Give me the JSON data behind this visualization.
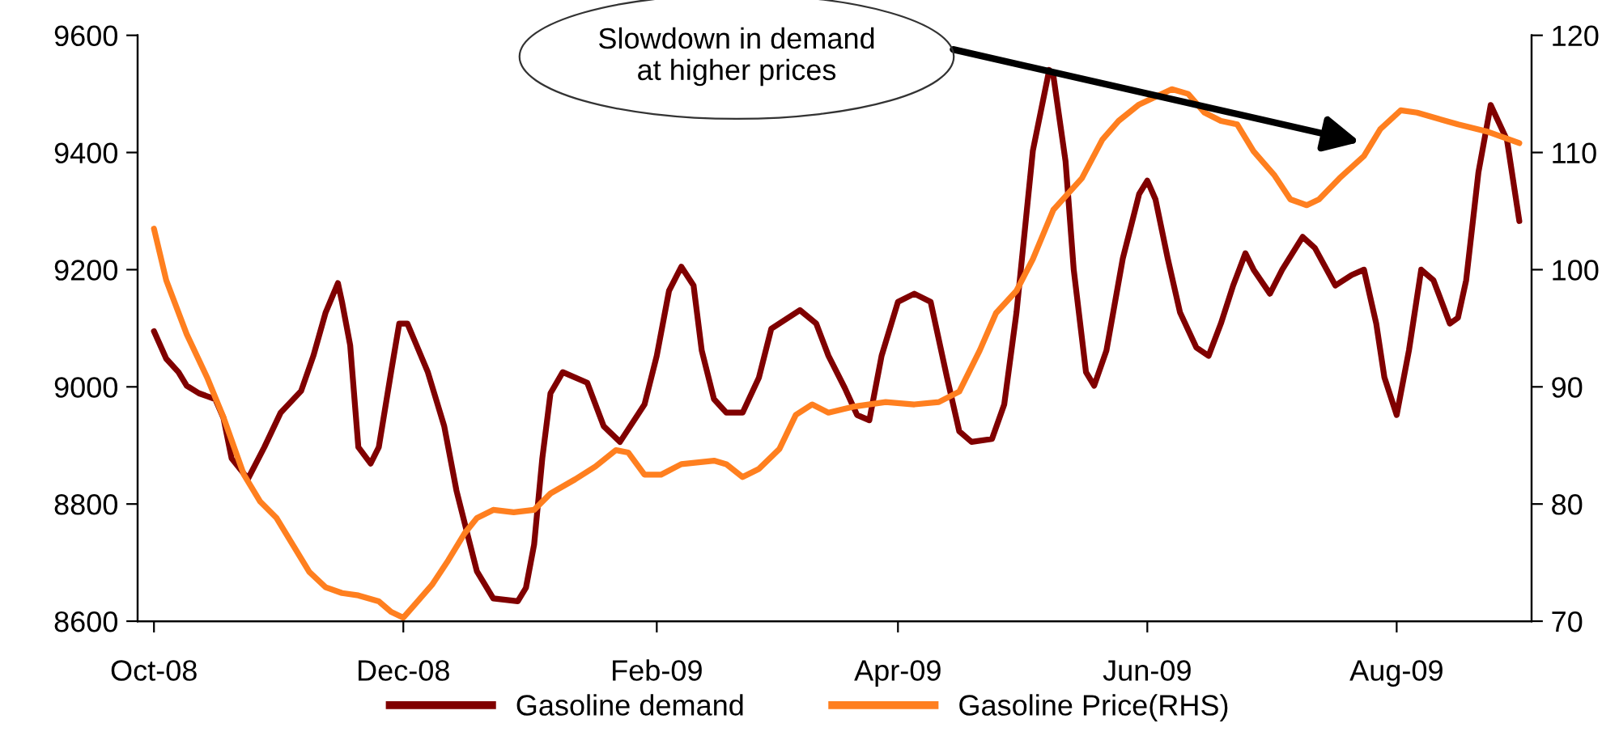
{
  "chart_data": {
    "type": "line",
    "annotations": [
      "Slowdown in demand\nat higher prices"
    ],
    "xlim": [
      "2008-09-27",
      "2009-09-03"
    ],
    "xticks": [
      {
        "value": "2008-10-01",
        "label": "Oct-08"
      },
      {
        "value": "2008-12-01",
        "label": "Dec-08"
      },
      {
        "value": "2009-02-01",
        "label": "Feb-09"
      },
      {
        "value": "2009-04-01",
        "label": "Apr-09"
      },
      {
        "value": "2009-06-01",
        "label": "Jun-09"
      },
      {
        "value": "2009-08-01",
        "label": "Aug-09"
      }
    ],
    "ylim": [
      8600,
      9600
    ],
    "yticks": [
      8600,
      8800,
      9000,
      9200,
      9400,
      9600
    ],
    "y2lim": [
      70,
      120
    ],
    "y2ticks": [
      70,
      80,
      90,
      100,
      110,
      120
    ],
    "grid": false,
    "legend": "bottom",
    "marker": "none",
    "line_style": "solid",
    "series": [
      {
        "name": "Gasoline demand",
        "color": "#800000",
        "x": [
          "2008-10-01",
          "2008-10-04",
          "2008-10-07",
          "2008-10-09",
          "2008-10-12",
          "2008-10-16",
          "2008-10-18",
          "2008-10-20",
          "2008-10-24",
          "2008-10-28",
          "2008-11-01",
          "2008-11-06",
          "2008-11-09",
          "2008-11-12",
          "2008-11-15",
          "2008-11-16",
          "2008-11-18",
          "2008-11-20",
          "2008-11-23",
          "2008-11-25",
          "2008-11-28",
          "2008-11-30",
          "2008-12-02",
          "2008-12-07",
          "2008-12-11",
          "2008-12-14",
          "2008-12-17",
          "2008-12-19",
          "2008-12-23",
          "2008-12-29",
          "2008-12-31",
          "2009-01-02",
          "2009-01-04",
          "2009-01-06",
          "2009-01-09",
          "2009-01-15",
          "2009-01-19",
          "2009-01-23",
          "2009-01-29",
          "2009-02-01",
          "2009-02-04",
          "2009-02-07",
          "2009-02-10",
          "2009-02-12",
          "2009-02-15",
          "2009-02-18",
          "2009-02-22",
          "2009-02-26",
          "2009-03-01",
          "2009-03-08",
          "2009-03-12",
          "2009-03-15",
          "2009-03-19",
          "2009-03-22",
          "2009-03-25",
          "2009-03-28",
          "2009-04-01",
          "2009-04-05",
          "2009-04-09",
          "2009-04-13",
          "2009-04-16",
          "2009-04-19",
          "2009-04-24",
          "2009-04-27",
          "2009-04-30",
          "2009-05-04",
          "2009-05-08",
          "2009-05-09",
          "2009-05-12",
          "2009-05-14",
          "2009-05-17",
          "2009-05-19",
          "2009-05-22",
          "2009-05-26",
          "2009-05-30",
          "2009-06-01",
          "2009-06-03",
          "2009-06-06",
          "2009-06-09",
          "2009-06-13",
          "2009-06-16",
          "2009-06-19",
          "2009-06-22",
          "2009-06-25",
          "2009-06-27",
          "2009-07-01",
          "2009-07-04",
          "2009-07-09",
          "2009-07-12",
          "2009-07-17",
          "2009-07-21",
          "2009-07-24",
          "2009-07-27",
          "2009-07-29",
          "2009-08-01",
          "2009-08-04",
          "2009-08-07",
          "2009-08-10",
          "2009-08-14",
          "2009-08-16",
          "2009-08-18",
          "2009-08-21",
          "2009-08-24",
          "2009-08-28",
          "2009-08-31"
        ],
        "values": [
          9095,
          9048,
          9025,
          9002,
          8989,
          8979,
          8947,
          8878,
          8843,
          8897,
          8956,
          8993,
          9053,
          9127,
          9177,
          9145,
          9071,
          8897,
          8869,
          8897,
          9025,
          9108,
          9108,
          9025,
          8933,
          8823,
          8740,
          8685,
          8639,
          8634,
          8657,
          8731,
          8878,
          8989,
          9025,
          9007,
          8933,
          8906,
          8970,
          9053,
          9164,
          9205,
          9173,
          9062,
          8979,
          8956,
          8956,
          9016,
          9099,
          9131,
          9108,
          9053,
          8998,
          8952,
          8943,
          9053,
          9145,
          9159,
          9145,
          9016,
          8924,
          8906,
          8911,
          8970,
          9127,
          9403,
          9541,
          9532,
          9385,
          9200,
          9025,
          9002,
          9062,
          9219,
          9329,
          9352,
          9320,
          9219,
          9127,
          9067,
          9053,
          9108,
          9173,
          9228,
          9200,
          9159,
          9200,
          9256,
          9237,
          9173,
          9191,
          9200,
          9108,
          9016,
          8952,
          9062,
          9200,
          9182,
          9108,
          9118,
          9182,
          9366,
          9481,
          9421,
          9283
        ]
      },
      {
        "name": "Gasoline Price(RHS)",
        "color": "#ff7f1f",
        "axis": "y2",
        "x": [
          "2008-10-01",
          "2008-10-04",
          "2008-10-09",
          "2008-10-14",
          "2008-10-18",
          "2008-10-23",
          "2008-10-27",
          "2008-10-31",
          "2008-11-04",
          "2008-11-08",
          "2008-11-12",
          "2008-11-16",
          "2008-11-20",
          "2008-11-25",
          "2008-11-28",
          "2008-12-01",
          "2008-12-04",
          "2008-12-08",
          "2008-12-12",
          "2008-12-16",
          "2008-12-19",
          "2008-12-23",
          "2008-12-28",
          "2009-01-02",
          "2009-01-06",
          "2009-01-12",
          "2009-01-17",
          "2009-01-22",
          "2009-01-25",
          "2009-01-29",
          "2009-02-02",
          "2009-02-07",
          "2009-02-15",
          "2009-02-18",
          "2009-02-22",
          "2009-02-26",
          "2009-03-03",
          "2009-03-07",
          "2009-03-11",
          "2009-03-15",
          "2009-03-21",
          "2009-03-29",
          "2009-04-05",
          "2009-04-11",
          "2009-04-16",
          "2009-04-21",
          "2009-04-25",
          "2009-04-30",
          "2009-05-04",
          "2009-05-09",
          "2009-05-16",
          "2009-05-21",
          "2009-05-25",
          "2009-05-30",
          "2009-06-07",
          "2009-06-11",
          "2009-06-15",
          "2009-06-19",
          "2009-06-23",
          "2009-06-27",
          "2009-07-02",
          "2009-07-06",
          "2009-07-10",
          "2009-07-13",
          "2009-07-18",
          "2009-07-24",
          "2009-07-28",
          "2009-08-02",
          "2009-08-06",
          "2009-08-16",
          "2009-08-23",
          "2009-08-31"
        ],
        "values": [
          103.5,
          99.1,
          94.5,
          90.8,
          87.4,
          82.5,
          80.2,
          78.8,
          76.5,
          74.2,
          72.9,
          72.4,
          72.2,
          71.7,
          70.8,
          70.3,
          71.5,
          73.1,
          75.2,
          77.5,
          78.8,
          79.5,
          79.3,
          79.5,
          80.9,
          82.1,
          83.2,
          84.6,
          84.4,
          82.5,
          82.5,
          83.4,
          83.7,
          83.4,
          82.3,
          83.0,
          84.7,
          87.6,
          88.5,
          87.8,
          88.3,
          88.7,
          88.5,
          88.7,
          89.6,
          93.1,
          96.3,
          98.2,
          100.9,
          105.1,
          107.8,
          111.1,
          112.7,
          114.1,
          115.4,
          115.0,
          113.4,
          112.7,
          112.4,
          110.1,
          108.1,
          106.0,
          105.5,
          106.0,
          107.8,
          109.7,
          112.0,
          113.6,
          113.4,
          112.4,
          111.8,
          110.8
        ]
      }
    ]
  }
}
